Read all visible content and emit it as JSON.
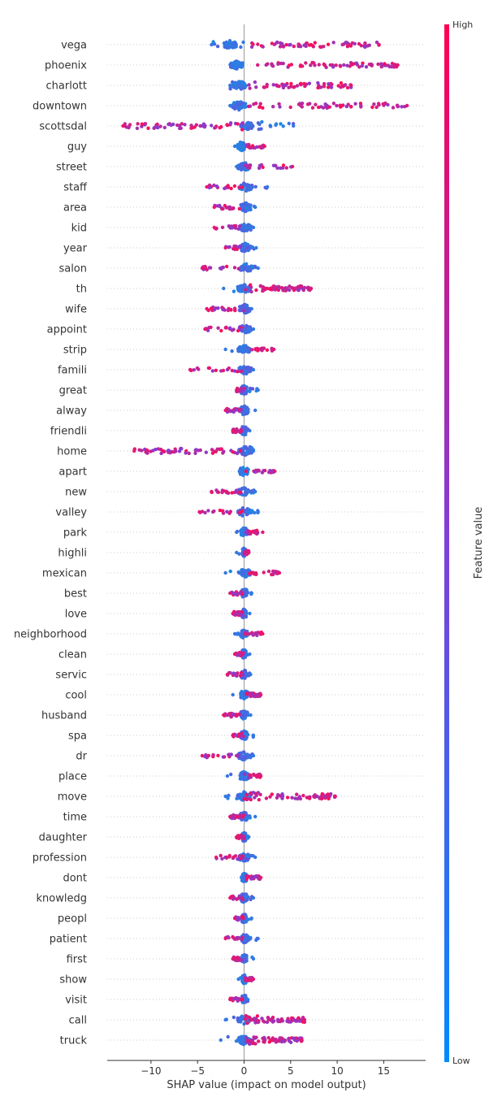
{
  "chart_data": {
    "type": "scatter",
    "subtype": "shap-beeswarm",
    "xlabel": "SHAP value (impact on model output)",
    "xlim": [
      -14.7,
      19.5
    ],
    "xticks": [
      -10,
      -5,
      0,
      5,
      10,
      15
    ],
    "xtick_labels": [
      "−10",
      "−5",
      "0",
      "5",
      "10",
      "15"
    ],
    "grid": false,
    "colorbar": {
      "label": "Feature value",
      "high_label": "High",
      "low_label": "Low",
      "colors": [
        "#008bfb",
        "#ff0052"
      ]
    },
    "colors": {
      "low": "#1e88e5",
      "mid": "#7f3fd9",
      "high": "#ff0d57",
      "gridline": "#cccccc",
      "zero_line": "#999999"
    },
    "features": [
      {
        "name": "vega",
        "min": -3.5,
        "max": 14.5,
        "pattern": "pos_high",
        "mode": -1.5
      },
      {
        "name": "phoenix",
        "min": -1.2,
        "max": 16.5,
        "pattern": "pos_high",
        "mode": -0.8
      },
      {
        "name": "charlott",
        "min": -1.5,
        "max": 11.5,
        "pattern": "pos_high",
        "mode": -0.5
      },
      {
        "name": "downtown",
        "min": -1.5,
        "max": 17.5,
        "pattern": "pos_high",
        "mode": -0.5
      },
      {
        "name": "scottsdal",
        "min": -13.0,
        "max": 5.3,
        "pattern": "neg_high",
        "mode": 0.3
      },
      {
        "name": "guy",
        "min": -1.0,
        "max": 2.2,
        "pattern": "pos_high",
        "mode": -0.3
      },
      {
        "name": "street",
        "min": -0.8,
        "max": 5.2,
        "pattern": "pos_high",
        "mode": 0.0
      },
      {
        "name": "staff",
        "min": -4.0,
        "max": 2.5,
        "pattern": "neg_high",
        "mode": 0.2
      },
      {
        "name": "area",
        "min": -3.2,
        "max": 1.2,
        "pattern": "neg_high",
        "mode": 0.2
      },
      {
        "name": "kid",
        "min": -3.2,
        "max": 1.0,
        "pattern": "neg_high",
        "mode": 0.2
      },
      {
        "name": "year",
        "min": -2.0,
        "max": 1.3,
        "pattern": "neg_high",
        "mode": 0.1
      },
      {
        "name": "salon",
        "min": -4.5,
        "max": 1.5,
        "pattern": "neg_high",
        "mode": 0.2
      },
      {
        "name": "th",
        "min": -2.2,
        "max": 7.2,
        "pattern": "pos_high",
        "mode": 0.0
      },
      {
        "name": "wife",
        "min": -4.0,
        "max": 0.8,
        "pattern": "neg_high",
        "mode": 0.1
      },
      {
        "name": "appoint",
        "min": -4.2,
        "max": 1.0,
        "pattern": "neg_high",
        "mode": 0.1
      },
      {
        "name": "strip",
        "min": -2.0,
        "max": 3.2,
        "pattern": "pos_high",
        "mode": 0.0
      },
      {
        "name": "famili",
        "min": -5.8,
        "max": 1.0,
        "pattern": "neg_high",
        "mode": 0.1
      },
      {
        "name": "great",
        "min": -0.8,
        "max": 1.5,
        "pattern": "neg_high",
        "mode": 0.0
      },
      {
        "name": "alway",
        "min": -2.0,
        "max": 1.2,
        "pattern": "neg_high",
        "mode": 0.0
      },
      {
        "name": "friendli",
        "min": -1.2,
        "max": 0.6,
        "pattern": "neg_high",
        "mode": 0.0
      },
      {
        "name": "home",
        "min": -11.8,
        "max": 1.0,
        "pattern": "neg_high",
        "mode": 0.1
      },
      {
        "name": "apart",
        "min": -0.5,
        "max": 3.3,
        "pattern": "pos_high",
        "mode": 0.0
      },
      {
        "name": "new",
        "min": -3.5,
        "max": 1.2,
        "pattern": "neg_high",
        "mode": 0.0
      },
      {
        "name": "valley",
        "min": -4.8,
        "max": 1.5,
        "pattern": "neg_high",
        "mode": 0.0
      },
      {
        "name": "park",
        "min": -0.8,
        "max": 2.0,
        "pattern": "pos_high",
        "mode": 0.0
      },
      {
        "name": "highli",
        "min": -0.8,
        "max": 0.5,
        "pattern": "pos_high",
        "mode": 0.0
      },
      {
        "name": "mexican",
        "min": -2.0,
        "max": 3.8,
        "pattern": "pos_high",
        "mode": 0.1
      },
      {
        "name": "best",
        "min": -1.5,
        "max": 0.8,
        "pattern": "neg_high",
        "mode": 0.0
      },
      {
        "name": "love",
        "min": -1.2,
        "max": 0.6,
        "pattern": "neg_high",
        "mode": 0.0
      },
      {
        "name": "neighborhood",
        "min": -1.0,
        "max": 2.0,
        "pattern": "pos_high",
        "mode": 0.0
      },
      {
        "name": "clean",
        "min": -1.0,
        "max": 0.6,
        "pattern": "neg_high",
        "mode": 0.0
      },
      {
        "name": "servic",
        "min": -1.8,
        "max": 0.7,
        "pattern": "neg_high",
        "mode": 0.0
      },
      {
        "name": "cool",
        "min": -1.2,
        "max": 1.8,
        "pattern": "pos_high",
        "mode": 0.0
      },
      {
        "name": "husband",
        "min": -2.2,
        "max": 0.7,
        "pattern": "neg_high",
        "mode": 0.0
      },
      {
        "name": "spa",
        "min": -1.2,
        "max": 1.0,
        "pattern": "neg_high",
        "mode": 0.0
      },
      {
        "name": "dr",
        "min": -4.5,
        "max": 1.0,
        "pattern": "neg_high",
        "mode": 0.0
      },
      {
        "name": "place",
        "min": -1.8,
        "max": 1.8,
        "pattern": "pos_high",
        "mode": 0.0
      },
      {
        "name": "move",
        "min": -2.0,
        "max": 9.8,
        "pattern": "pos_high",
        "mode": 0.0
      },
      {
        "name": "time",
        "min": -1.5,
        "max": 1.2,
        "pattern": "neg_high",
        "mode": 0.0
      },
      {
        "name": "daughter",
        "min": -0.8,
        "max": 0.5,
        "pattern": "neg_high",
        "mode": 0.0
      },
      {
        "name": "profession",
        "min": -3.0,
        "max": 1.2,
        "pattern": "neg_high",
        "mode": 0.0
      },
      {
        "name": "dont",
        "min": -0.3,
        "max": 1.8,
        "pattern": "pos_high",
        "mode": 0.0
      },
      {
        "name": "knowledg",
        "min": -1.5,
        "max": 1.0,
        "pattern": "neg_high",
        "mode": 0.0
      },
      {
        "name": "peopl",
        "min": -1.0,
        "max": 0.8,
        "pattern": "neg_high",
        "mode": 0.0
      },
      {
        "name": "patient",
        "min": -2.0,
        "max": 1.5,
        "pattern": "neg_high",
        "mode": 0.0
      },
      {
        "name": "first",
        "min": -1.2,
        "max": 1.0,
        "pattern": "neg_high",
        "mode": 0.0
      },
      {
        "name": "show",
        "min": -0.6,
        "max": 1.0,
        "pattern": "pos_high",
        "mode": 0.0
      },
      {
        "name": "visit",
        "min": -1.5,
        "max": 0.4,
        "pattern": "neg_high",
        "mode": 0.0
      },
      {
        "name": "call",
        "min": -2.0,
        "max": 6.5,
        "pattern": "pos_high",
        "mode": 0.0
      },
      {
        "name": "truck",
        "min": -2.5,
        "max": 6.2,
        "pattern": "pos_high",
        "mode": 0.0
      }
    ]
  }
}
